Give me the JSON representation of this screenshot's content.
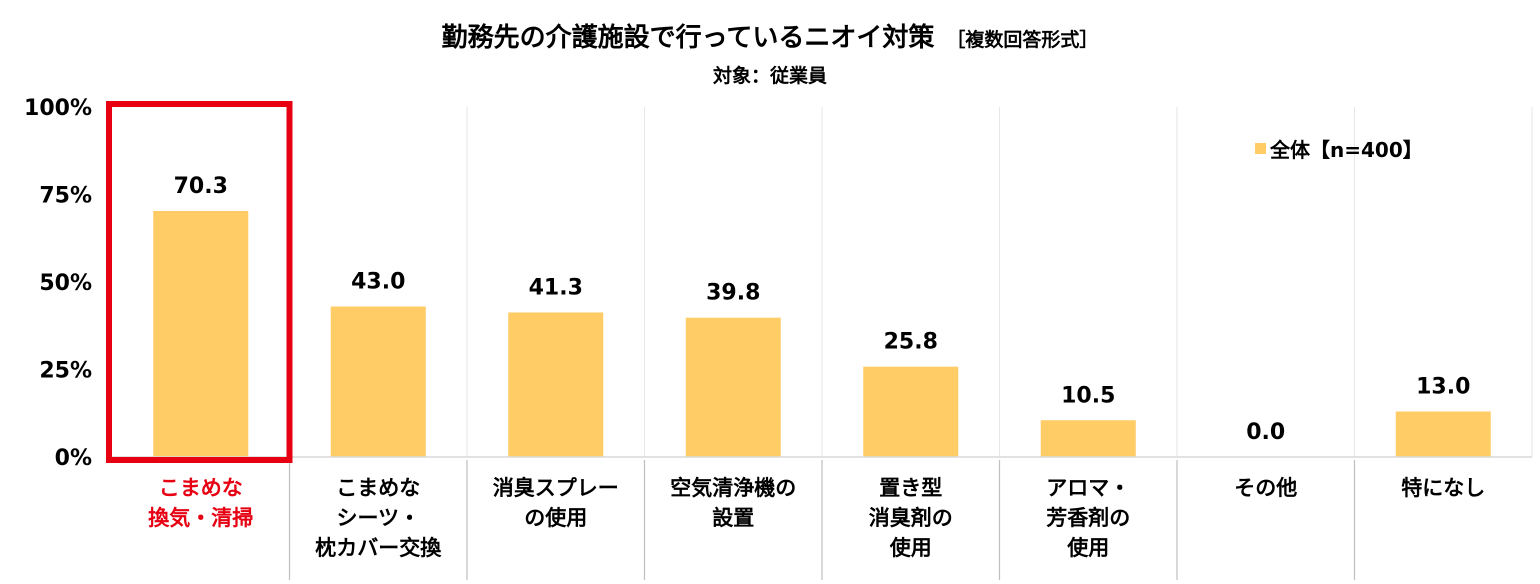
{
  "chart_data": {
    "type": "bar",
    "title": "勤務先の介護施設で行っているニオイ対策",
    "title_note": "［複数回答形式］",
    "subtitle": "対象：従業員",
    "categories": [
      [
        "こまめな",
        "換気・清掃"
      ],
      [
        "こまめな",
        "シーツ・",
        "枕カバー交換"
      ],
      [
        "消臭スプレー",
        "の使用"
      ],
      [
        "空気清浄機の",
        "設置"
      ],
      [
        "置き型",
        "消臭剤の",
        "使用"
      ],
      [
        "アロマ・",
        "芳香剤の",
        "使用"
      ],
      [
        "その他"
      ],
      [
        "特になし"
      ]
    ],
    "series": [
      {
        "name": "全体【n=400】",
        "values": [
          70.3,
          43.0,
          41.3,
          39.8,
          25.8,
          10.5,
          0.0,
          13.0
        ],
        "color": "#FFCC66"
      }
    ],
    "data_labels": [
      "70.3",
      "43.0",
      "41.3",
      "39.8",
      "25.8",
      "10.5",
      "0.0",
      "13.0"
    ],
    "yticks": [
      "0%",
      "25%",
      "50%",
      "75%",
      "100%"
    ],
    "ylim": [
      0,
      100
    ],
    "grid": "vertical category separators",
    "legend_position": "top-right",
    "highlight": {
      "category_index": 0,
      "color": "#E60012"
    }
  }
}
